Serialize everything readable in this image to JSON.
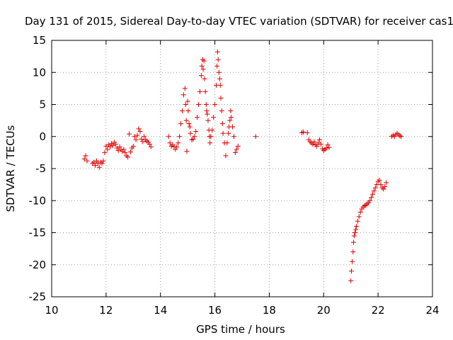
{
  "chart_data": {
    "type": "scatter",
    "title": "Day 131 of 2015, Sidereal Day-to-day VTEC variation (SDTVAR) for receiver cas1",
    "xlabel": "GPS time / hours",
    "ylabel": "SDTVAR / TECUs",
    "xlim": [
      10,
      24
    ],
    "ylim": [
      -25,
      15
    ],
    "xticks": [
      "10",
      "12",
      "14",
      "16",
      "18",
      "20",
      "22",
      "24"
    ],
    "yticks": [
      "15",
      "10",
      "5",
      "0",
      "-5",
      "-10",
      "-15",
      "-20",
      "-25"
    ],
    "grid": true,
    "marker": "plus",
    "color": "#e00000",
    "series": [
      {
        "name": "SDTVAR",
        "x": [
          11.2,
          11.25,
          11.3,
          11.5,
          11.55,
          11.6,
          11.65,
          11.7,
          11.75,
          11.8,
          11.85,
          11.9,
          11.95,
          12.0,
          12.05,
          12.1,
          12.15,
          12.2,
          12.25,
          12.3,
          12.35,
          12.4,
          12.45,
          12.5,
          12.55,
          12.6,
          12.65,
          12.7,
          12.75,
          12.8,
          12.85,
          12.9,
          12.95,
          13.0,
          13.05,
          13.1,
          13.15,
          13.2,
          13.25,
          13.3,
          13.35,
          13.4,
          13.45,
          13.5,
          13.55,
          13.6,
          13.65,
          14.3,
          14.35,
          14.4,
          14.45,
          14.5,
          14.55,
          14.6,
          14.65,
          14.7,
          14.75,
          14.8,
          14.85,
          14.9,
          14.93,
          14.95,
          14.97,
          15.0,
          15.02,
          15.05,
          15.08,
          15.1,
          15.15,
          15.2,
          15.25,
          15.3,
          15.35,
          15.4,
          15.45,
          15.5,
          15.52,
          15.55,
          15.57,
          15.6,
          15.62,
          15.65,
          15.68,
          15.7,
          15.72,
          15.75,
          15.78,
          15.8,
          15.82,
          15.85,
          15.9,
          15.95,
          16.0,
          16.05,
          16.08,
          16.1,
          16.12,
          16.15,
          16.18,
          16.2,
          16.22,
          16.25,
          16.28,
          16.3,
          16.35,
          16.4,
          16.45,
          16.5,
          16.52,
          16.55,
          16.58,
          16.6,
          16.65,
          16.7,
          16.75,
          16.8,
          16.85,
          17.5,
          19.2,
          19.25,
          19.4,
          19.45,
          19.5,
          19.55,
          19.6,
          19.65,
          19.7,
          19.75,
          19.8,
          19.85,
          19.9,
          19.95,
          20.0,
          20.05,
          20.1,
          20.15,
          20.2,
          21.0,
          21.02,
          21.05,
          21.08,
          21.1,
          21.12,
          21.15,
          21.18,
          21.2,
          21.25,
          21.3,
          21.35,
          21.4,
          21.45,
          21.5,
          21.55,
          21.6,
          21.65,
          21.7,
          21.75,
          21.8,
          21.85,
          21.9,
          21.95,
          22.0,
          22.05,
          22.1,
          22.15,
          22.2,
          22.25,
          22.3,
          22.5,
          22.55,
          22.6,
          22.65,
          22.7,
          22.75,
          22.8,
          22.85
        ],
        "y": [
          -3.5,
          -3.0,
          -3.8,
          -4.2,
          -4.0,
          -4.5,
          -3.8,
          -4.2,
          -4.8,
          -4.0,
          -4.2,
          -3.8,
          -2.5,
          -1.5,
          -2.0,
          -1.3,
          -1.6,
          -1.1,
          -1.4,
          -0.9,
          -1.2,
          -1.8,
          -2.2,
          -1.6,
          -2.0,
          -2.3,
          -2.0,
          -2.5,
          -3.0,
          -3.2,
          0.4,
          -2.4,
          -1.8,
          -1.5,
          0.0,
          -0.5,
          0.2,
          1.2,
          0.8,
          -0.4,
          -0.8,
          0.0,
          -0.5,
          -0.7,
          -0.9,
          -1.2,
          -1.6,
          0.0,
          -1.0,
          -1.5,
          -1.3,
          -1.6,
          -2.0,
          -1.6,
          -1.0,
          0.0,
          2.0,
          4.0,
          6.5,
          7.5,
          5.0,
          2.5,
          -2.3,
          5.5,
          4.0,
          2.0,
          1.5,
          0.5,
          -0.5,
          -0.4,
          0.0,
          0.8,
          3.0,
          5.0,
          7.0,
          9.5,
          11.0,
          12.0,
          10.5,
          11.8,
          9.0,
          7.0,
          5.0,
          4.0,
          3.5,
          2.5,
          1.0,
          0.0,
          -1.0,
          0.0,
          1.0,
          3.0,
          5.0,
          8.0,
          11.0,
          13.2,
          12.0,
          10.0,
          9.0,
          8.0,
          6.0,
          4.0,
          2.0,
          0.5,
          -1.0,
          -3.0,
          -1.0,
          0.5,
          1.5,
          2.5,
          4.0,
          3.0,
          1.5,
          0.0,
          -2.5,
          -2.0,
          -1.5,
          0.0,
          0.6,
          0.7,
          0.6,
          -0.5,
          -0.8,
          -1.0,
          -1.2,
          -0.8,
          -1.3,
          -1.5,
          -1.0,
          -0.5,
          -1.2,
          -1.9,
          -2.2,
          -2.0,
          -1.8,
          -1.3,
          -1.7,
          -22.5,
          -21.0,
          -19.5,
          -18.0,
          -16.5,
          -15.5,
          -15.0,
          -14.5,
          -14.0,
          -13.2,
          -12.5,
          -11.8,
          -11.3,
          -11.0,
          -10.8,
          -10.7,
          -10.5,
          -10.3,
          -10.0,
          -9.5,
          -9.0,
          -8.5,
          -8.0,
          -7.5,
          -7.0,
          -6.8,
          -7.5,
          -8.0,
          -8.2,
          -7.8,
          -7.2,
          0.0,
          0.2,
          0.0,
          0.3,
          0.5,
          0.3,
          0.1,
          0.0
        ]
      }
    ]
  }
}
